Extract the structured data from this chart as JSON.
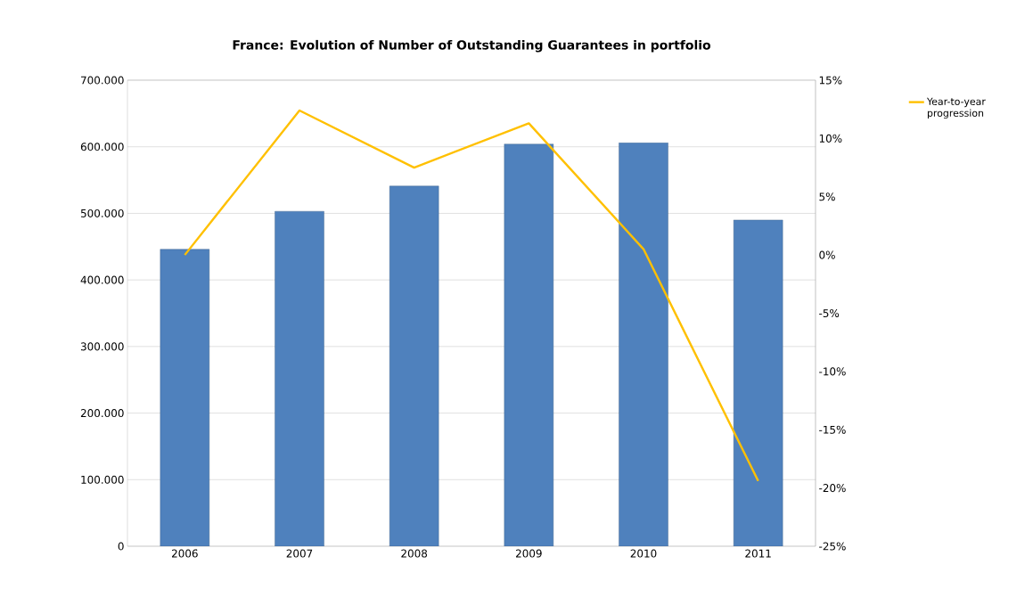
{
  "chart_data": {
    "type": "bar",
    "title": "France: Evolution of Number of Outstanding Guarantees in portfolio",
    "categories": [
      "2006",
      "2007",
      "2008",
      "2009",
      "2010",
      "2011"
    ],
    "series": [
      {
        "color": "#4f81bd",
        "values": [
          446000,
          503000,
          541000,
          604000,
          606000,
          490000
        ]
      },
      {
        "type": "line",
        "name": "Year-to-year progression",
        "color": "#ffc000",
        "axis": "y2",
        "values": [
          0,
          12.4,
          7.5,
          11.3,
          0.5,
          -19.4
        ]
      }
    ],
    "ylim": [
      0,
      700000
    ],
    "yticks": [
      {
        "value": 0,
        "label": "0"
      },
      {
        "value": 100000,
        "label": "100.000"
      },
      {
        "value": 200000,
        "label": "200.000"
      },
      {
        "value": 300000,
        "label": "300.000"
      },
      {
        "value": 400000,
        "label": "400.000"
      },
      {
        "value": 500000,
        "label": "500.000"
      },
      {
        "value": 600000,
        "label": "600.000"
      },
      {
        "value": 700000,
        "label": "700.000"
      }
    ],
    "y2lim": [
      -25,
      15
    ],
    "y2ticks": [
      {
        "value": -25,
        "label": "-25%"
      },
      {
        "value": -20,
        "label": "-20%"
      },
      {
        "value": -15,
        "label": "-15%"
      },
      {
        "value": -10,
        "label": "-10%"
      },
      {
        "value": -5,
        "label": "-5%"
      },
      {
        "value": 0,
        "label": "0%"
      },
      {
        "value": 5,
        "label": "5%"
      },
      {
        "value": 10,
        "label": "10%"
      },
      {
        "value": 15,
        "label": "15%"
      }
    ],
    "grid": "y",
    "legend": "right",
    "marker": "none"
  }
}
